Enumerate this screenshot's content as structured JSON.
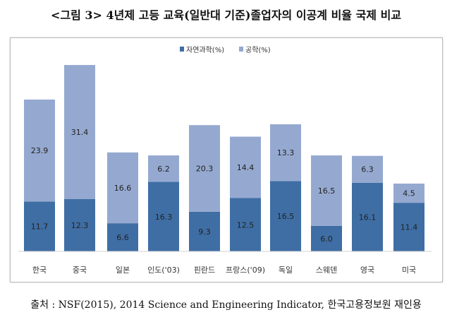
{
  "chart_data": {
    "type": "bar",
    "stacked": true,
    "title": "<그림 3> 4년제 고등 교육(일반대 기준)졸업자의 이공계 비율 국제 비교",
    "categories": [
      "한국",
      "중국",
      "일본",
      "인도('03)",
      "핀란드",
      "프랑스('09)",
      "독일",
      "스웨덴",
      "영국",
      "미국"
    ],
    "series": [
      {
        "name": "자연과학(%)",
        "color": "#3f6ea4",
        "values": [
          11.7,
          12.3,
          6.6,
          16.3,
          9.3,
          12.5,
          16.5,
          6.0,
          16.1,
          11.4
        ]
      },
      {
        "name": "공학(%)",
        "color": "#95a9d0",
        "values": [
          23.9,
          31.4,
          16.6,
          6.2,
          20.3,
          14.4,
          13.3,
          16.5,
          6.3,
          4.5
        ]
      }
    ],
    "legend_position": "top-center",
    "ylim": [
      0,
      45
    ],
    "grid": false,
    "source": "출처 : NSF(2015), 2014 Science and Engineering Indicator, 한국고용정보원 재인용"
  }
}
